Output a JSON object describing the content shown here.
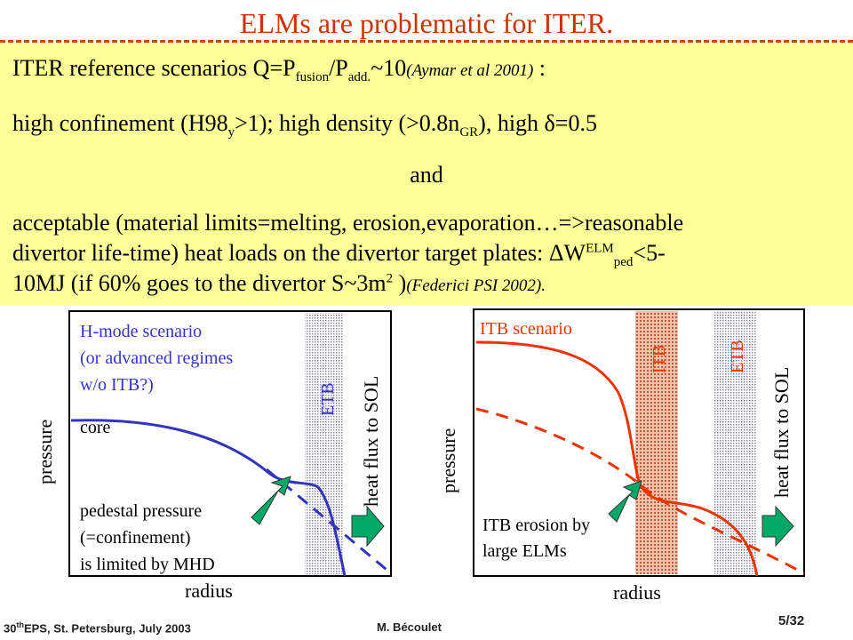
{
  "slide": {
    "title": "ELMs are problematic for ITER.",
    "line1": {
      "a": "ITER reference scenarios Q=P",
      "sub1": "fusion",
      "b": "/P",
      "sub2": "add.",
      "c": "~10",
      "cite": "(Aymar et al 2001)",
      "d": " :"
    },
    "line2": {
      "a": "high confinement (H98",
      "sub1": "y",
      "b": ">1); high density (>0.8n",
      "sub2": "GR",
      "c": "), high δ=0.5"
    },
    "line3": "and",
    "line4": "acceptable (material limits=melting, erosion,evaporation…=>reasonable",
    "line5": {
      "a": "divertor life-time) heat loads on the divertor target plates: ΔW",
      "sup": "ELM",
      "sub": "ped",
      "b": "<5-"
    },
    "line6": {
      "a": "10MJ (if 60% goes to the divertor S~3m",
      "sup": "2",
      "b": " )",
      "cite": "(Federici PSI 2002)."
    }
  },
  "left_panel": {
    "title_l1": "H-mode scenario",
    "title_l2": "(or advanced regimes",
    "title_l3": "w/o ITB?)",
    "core": "core",
    "ped_l1": "pedestal pressure",
    "ped_l2": "(=confinement)",
    "ped_l3": "is limited by MHD",
    "etb": "ETB",
    "heat_flux": "heat flux to SOL",
    "ylabel": "pressure",
    "xlabel": "radius"
  },
  "right_panel": {
    "title": "ITB scenario",
    "itb": "ITB",
    "etb": "ETB",
    "heat_flux": "heat flux to SOL",
    "erosion_l1": "ITB erosion by",
    "erosion_l2": "large ELMs",
    "ylabel": "pressure",
    "xlabel": "radius"
  },
  "colors": {
    "title": "#cc3300",
    "box": "#ffff99",
    "blue_curve": "#3333bb",
    "red_curve": "#ee3300",
    "arrow": "#00aa66",
    "blue_text": "#3333cc"
  },
  "footer": {
    "left_sup": "th",
    "left_pre": "30",
    "left_post": "EPS, St. Petersburg, July 2003",
    "author": "M. Bécoulet",
    "page": "5/32"
  }
}
